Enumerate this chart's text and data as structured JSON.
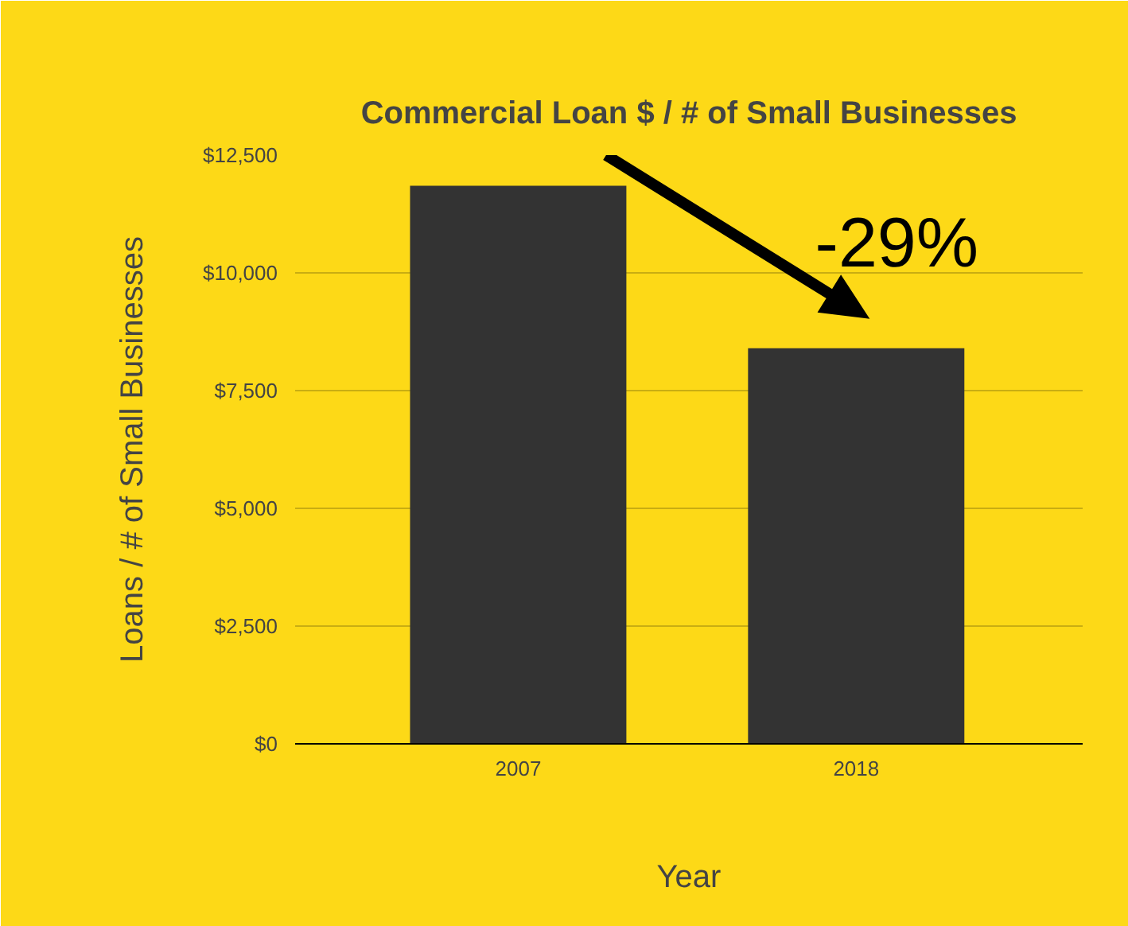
{
  "chart_data": {
    "type": "bar",
    "title": "Commercial Loan $ / # of Small Businesses",
    "xlabel": "Year",
    "ylabel": "Loans / # of Small Businesses",
    "categories": [
      "2007",
      "2018"
    ],
    "values": [
      11850,
      8400
    ],
    "color": "#333333",
    "ylim": [
      0,
      12500
    ],
    "yticks": [
      {
        "value": 0,
        "label": "$0"
      },
      {
        "value": 2500,
        "label": "$2,500"
      },
      {
        "value": 5000,
        "label": "$5,000"
      },
      {
        "value": 7500,
        "label": "$7,500"
      },
      {
        "value": 10000,
        "label": "$10,000"
      },
      {
        "value": 12500,
        "label": "$12,500"
      }
    ],
    "grid": "y",
    "annotations": [
      "-29%"
    ]
  }
}
